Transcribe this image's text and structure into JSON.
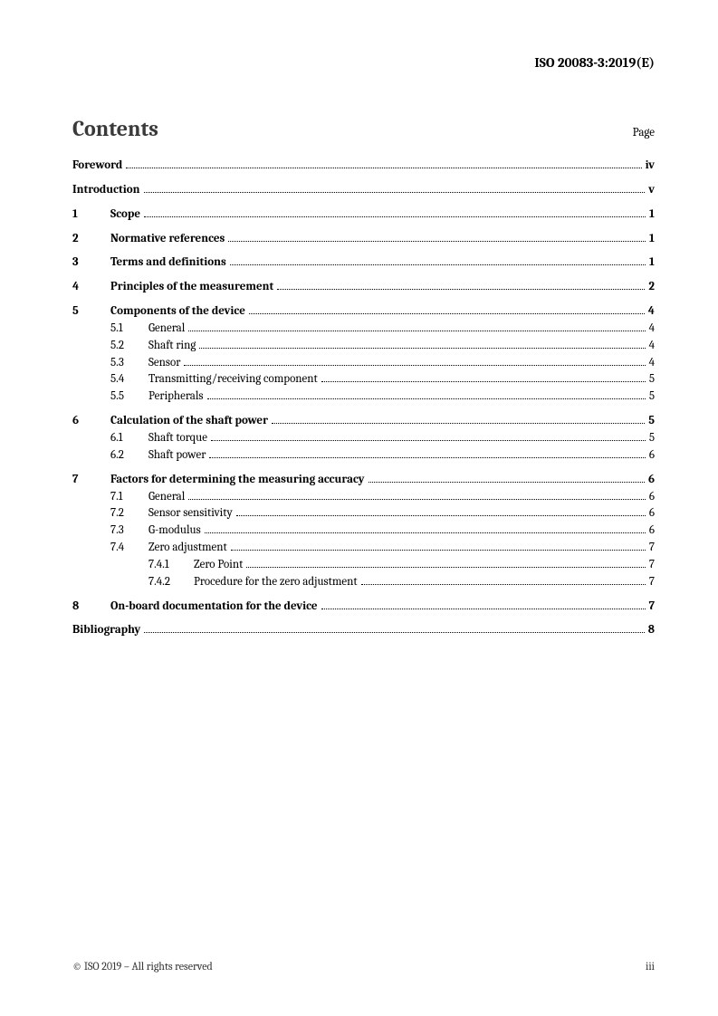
{
  "header": {
    "doc_id": "ISO 20083-3:2019(E)"
  },
  "contents": {
    "title": "Contents",
    "page_label": "Page"
  },
  "toc": {
    "entries": [
      {
        "type": "front",
        "label": "Foreword",
        "page": "iv"
      },
      {
        "type": "front",
        "label": "Introduction",
        "page": "v"
      },
      {
        "type": "section",
        "num": "1",
        "label": "Scope",
        "page": "1"
      },
      {
        "type": "section",
        "num": "2",
        "label": "Normative references",
        "page": "1"
      },
      {
        "type": "section",
        "num": "3",
        "label": "Terms and definitions",
        "page": "1"
      },
      {
        "type": "section",
        "num": "4",
        "label": "Principles of the measurement",
        "page": "2"
      },
      {
        "type": "section",
        "num": "5",
        "label": "Components of the device",
        "page": "4",
        "children": [
          {
            "num": "5.1",
            "label": "General",
            "page": "4"
          },
          {
            "num": "5.2",
            "label": "Shaft ring",
            "page": "4"
          },
          {
            "num": "5.3",
            "label": "Sensor",
            "page": "4"
          },
          {
            "num": "5.4",
            "label": "Transmitting/receiving component",
            "page": "5"
          },
          {
            "num": "5.5",
            "label": "Peripherals",
            "page": "5"
          }
        ]
      },
      {
        "type": "section",
        "num": "6",
        "label": "Calculation of the shaft power",
        "page": "5",
        "children": [
          {
            "num": "6.1",
            "label": "Shaft torque",
            "page": "5"
          },
          {
            "num": "6.2",
            "label": "Shaft power",
            "page": "6"
          }
        ]
      },
      {
        "type": "section",
        "num": "7",
        "label": "Factors for determining the measuring accuracy",
        "page": "6",
        "children": [
          {
            "num": "7.1",
            "label": "General",
            "page": "6"
          },
          {
            "num": "7.2",
            "label": "Sensor sensitivity",
            "page": "6"
          },
          {
            "num": "7.3",
            "label": "G-modulus",
            "page": "6"
          },
          {
            "num": "7.4",
            "label": "Zero adjustment",
            "page": "7",
            "children": [
              {
                "num": "7.4.1",
                "label": "Zero Point",
                "page": "7"
              },
              {
                "num": "7.4.2",
                "label": "Procedure for the zero adjustment",
                "page": "7"
              }
            ]
          }
        ]
      },
      {
        "type": "section",
        "num": "8",
        "label": "On-board documentation for the device",
        "page": "7"
      },
      {
        "type": "front",
        "label": "Bibliography",
        "page": "8"
      }
    ]
  },
  "footer": {
    "copyright": "© ISO 2019 – All rights reserved",
    "page_num": "iii"
  }
}
